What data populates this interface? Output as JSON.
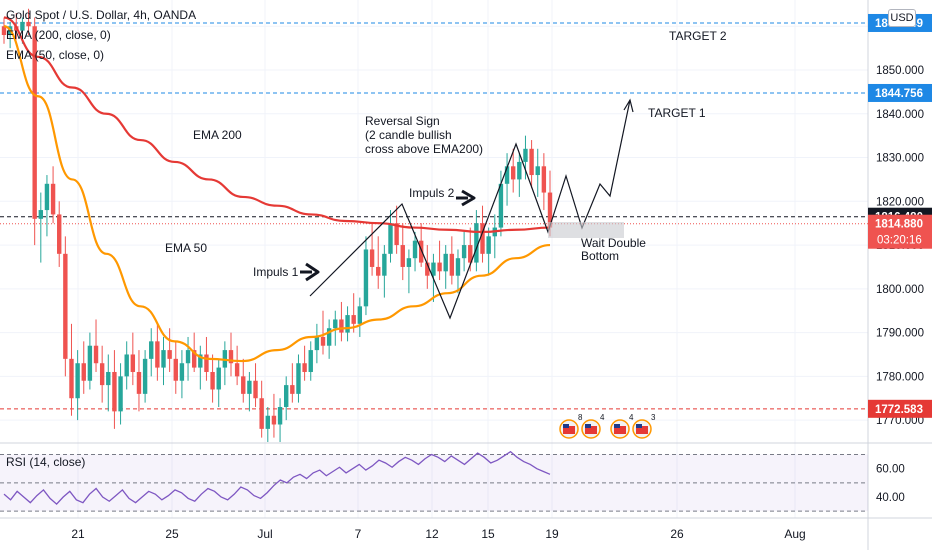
{
  "header": {
    "title": "Gold Spot / U.S. Dollar, 4h, OANDA",
    "ema200_legend": "EMA (200, close, 0)",
    "ema50_legend": "EMA (50, close, 0)",
    "currency_badge": "USD"
  },
  "rsi_panel": {
    "label": "RSI (14, close)",
    "ticks": [
      "60.00",
      "40.00"
    ]
  },
  "annotations": {
    "target2": "TARGET 2",
    "target1": "TARGET 1",
    "ema200": "EMA 200",
    "ema50": "EMA 50",
    "impuls1": "Impuls 1",
    "impuls2": "Impuls 2",
    "reversal": [
      "Reversal Sign",
      "(2 candle bullish",
      "cross above EMA200)"
    ],
    "wait": [
      "Wait Double",
      "Bottom"
    ]
  },
  "price_labels": {
    "target2": "1860.749",
    "target1": "1844.756",
    "level": "1816.480",
    "last": "1814.880",
    "countdown": "03:20:16",
    "support": "1772.583"
  },
  "chart_data": {
    "type": "candlestick",
    "title": "Gold Spot / U.S. Dollar, 4h, OANDA",
    "ylim": [
      1765,
      1866
    ],
    "y_ticks": [
      1770,
      1780,
      1790,
      1800,
      1810,
      1820,
      1830,
      1840,
      1850,
      1860
    ],
    "y_tick_labels": [
      "1770.000",
      "1780.000",
      "1790.000",
      "1800.000",
      "1810.000",
      "1820.000",
      "1830.000",
      "1840.000",
      "1850.000",
      "1860.000"
    ],
    "x_tick_labels": [
      "21",
      "25",
      "Jul",
      "7",
      "12",
      "15",
      "19",
      "26",
      "Aug"
    ],
    "horizontal_levels": [
      {
        "value": 1860.749,
        "style": "dashed",
        "color": "#1e88e5"
      },
      {
        "value": 1844.756,
        "style": "dashed",
        "color": "#1e88e5"
      },
      {
        "value": 1816.48,
        "style": "dashed",
        "color": "#131722"
      },
      {
        "value": 1814.88,
        "style": "dotted",
        "color": "#ef5350"
      },
      {
        "value": 1772.583,
        "style": "dashed",
        "color": "#e53935"
      }
    ],
    "ema200": [
      1862,
      1853,
      1846,
      1840,
      1834,
      1829,
      1825,
      1821,
      1819,
      1817,
      1815.5,
      1815,
      1814,
      1813.5,
      1813,
      1813.5,
      1814
    ],
    "ema50": [
      1860,
      1844,
      1825,
      1808,
      1796,
      1788,
      1784,
      1783.5,
      1786,
      1789,
      1791,
      1793,
      1796,
      1799,
      1803,
      1807,
      1810
    ],
    "candles": [
      [
        1860,
        1862,
        1856,
        1858
      ],
      [
        1858,
        1861,
        1855,
        1860
      ],
      [
        1860,
        1863,
        1857,
        1859
      ],
      [
        1859,
        1862,
        1856,
        1861
      ],
      [
        1861,
        1864,
        1858,
        1860
      ],
      [
        1860,
        1862,
        1810,
        1816
      ],
      [
        1816,
        1822,
        1806,
        1818
      ],
      [
        1818,
        1826,
        1812,
        1824
      ],
      [
        1824,
        1828,
        1815,
        1817
      ],
      [
        1817,
        1820,
        1805,
        1808
      ],
      [
        1808,
        1812,
        1780,
        1784
      ],
      [
        1784,
        1792,
        1771,
        1775
      ],
      [
        1775,
        1786,
        1770,
        1783
      ],
      [
        1783,
        1788,
        1776,
        1779
      ],
      [
        1779,
        1790,
        1777,
        1787
      ],
      [
        1787,
        1793,
        1781,
        1783
      ],
      [
        1783,
        1787,
        1774,
        1778
      ],
      [
        1778,
        1785,
        1772,
        1781
      ],
      [
        1781,
        1786,
        1768,
        1772
      ],
      [
        1772,
        1783,
        1769,
        1780
      ],
      [
        1780,
        1788,
        1777,
        1785
      ],
      [
        1785,
        1790,
        1778,
        1781
      ],
      [
        1781,
        1786,
        1772,
        1776
      ],
      [
        1776,
        1786,
        1774,
        1784
      ],
      [
        1784,
        1791,
        1780,
        1788
      ],
      [
        1788,
        1792,
        1779,
        1782
      ],
      [
        1782,
        1789,
        1778,
        1786
      ],
      [
        1786,
        1791,
        1781,
        1784
      ],
      [
        1784,
        1788,
        1776,
        1779
      ],
      [
        1779,
        1786,
        1775,
        1783
      ],
      [
        1783,
        1789,
        1779,
        1786
      ],
      [
        1786,
        1790,
        1781,
        1782
      ],
      [
        1782,
        1787,
        1777,
        1785
      ],
      [
        1785,
        1789,
        1779,
        1781
      ],
      [
        1781,
        1785,
        1774,
        1777
      ],
      [
        1777,
        1784,
        1773,
        1782
      ],
      [
        1782,
        1788,
        1778,
        1786
      ],
      [
        1786,
        1790,
        1780,
        1783
      ],
      [
        1783,
        1787,
        1778,
        1780
      ],
      [
        1780,
        1784,
        1774,
        1776
      ],
      [
        1776,
        1781,
        1772,
        1779
      ],
      [
        1779,
        1783,
        1773,
        1775
      ],
      [
        1775,
        1779,
        1766,
        1768
      ],
      [
        1768,
        1773,
        1765,
        1771
      ],
      [
        1771,
        1776,
        1766,
        1769
      ],
      [
        1769,
        1775,
        1765,
        1773
      ],
      [
        1773,
        1780,
        1770,
        1778
      ],
      [
        1778,
        1783,
        1774,
        1776
      ],
      [
        1776,
        1785,
        1774,
        1783
      ],
      [
        1783,
        1787,
        1779,
        1781
      ],
      [
        1781,
        1788,
        1779,
        1786
      ],
      [
        1786,
        1792,
        1783,
        1789
      ],
      [
        1789,
        1795,
        1785,
        1787
      ],
      [
        1787,
        1793,
        1784,
        1791
      ],
      [
        1791,
        1795,
        1787,
        1793
      ],
      [
        1793,
        1797,
        1788,
        1790
      ],
      [
        1790,
        1796,
        1788,
        1794
      ],
      [
        1794,
        1799,
        1790,
        1792
      ],
      [
        1792,
        1798,
        1789,
        1796
      ],
      [
        1796,
        1812,
        1794,
        1809
      ],
      [
        1809,
        1815,
        1803,
        1805
      ],
      [
        1805,
        1812,
        1800,
        1803
      ],
      [
        1803,
        1810,
        1798,
        1808
      ],
      [
        1808,
        1818,
        1806,
        1815
      ],
      [
        1815,
        1819,
        1808,
        1810
      ],
      [
        1810,
        1815,
        1802,
        1805
      ],
      [
        1805,
        1809,
        1799,
        1807
      ],
      [
        1807,
        1813,
        1804,
        1811
      ],
      [
        1811,
        1815,
        1805,
        1806
      ],
      [
        1806,
        1810,
        1800,
        1803
      ],
      [
        1803,
        1808,
        1797,
        1806
      ],
      [
        1806,
        1811,
        1802,
        1804
      ],
      [
        1804,
        1810,
        1800,
        1808
      ],
      [
        1808,
        1812,
        1801,
        1803
      ],
      [
        1803,
        1809,
        1799,
        1807
      ],
      [
        1807,
        1813,
        1804,
        1810
      ],
      [
        1810,
        1814,
        1804,
        1806
      ],
      [
        1806,
        1818,
        1804,
        1815
      ],
      [
        1815,
        1819,
        1806,
        1808
      ],
      [
        1808,
        1814,
        1803,
        1812
      ],
      [
        1812,
        1817,
        1807,
        1814
      ],
      [
        1814,
        1827,
        1812,
        1824
      ],
      [
        1824,
        1831,
        1819,
        1828
      ],
      [
        1828,
        1832,
        1822,
        1825
      ],
      [
        1825,
        1831,
        1821,
        1829
      ],
      [
        1829,
        1835,
        1825,
        1832
      ],
      [
        1832,
        1834,
        1823,
        1826
      ],
      [
        1826,
        1832,
        1821,
        1828
      ],
      [
        1828,
        1831,
        1818,
        1822
      ],
      [
        1822,
        1827,
        1812,
        1814
      ]
    ],
    "rsi": {
      "label": "RSI (14, close)",
      "ylim": [
        28,
        76
      ],
      "ticks": [
        60,
        40
      ],
      "bands": [
        70,
        50,
        30
      ],
      "values": [
        42,
        38,
        44,
        40,
        36,
        41,
        45,
        39,
        35,
        40,
        44,
        38,
        36,
        42,
        46,
        40,
        37,
        41,
        45,
        39,
        36,
        40,
        44,
        42,
        38,
        41,
        45,
        43,
        39,
        37,
        42,
        46,
        44,
        40,
        38,
        42,
        47,
        45,
        41,
        39,
        43,
        48,
        52,
        50,
        54,
        56,
        53,
        57,
        59,
        55,
        58,
        61,
        57,
        60,
        63,
        59,
        62,
        66,
        64,
        61,
        65,
        68,
        66,
        63,
        67,
        70,
        68,
        65,
        69,
        66,
        63,
        67,
        71,
        68,
        64,
        66,
        69,
        72,
        68,
        65,
        63,
        60,
        58,
        56
      ]
    }
  },
  "colors": {
    "ema200": "#e53935",
    "ema50": "#ff9800",
    "bull": "#26a69a",
    "bear": "#ef5350",
    "target_line": "#1e88e5",
    "support_line": "#e53935",
    "rsi_line": "#7e57c2"
  }
}
